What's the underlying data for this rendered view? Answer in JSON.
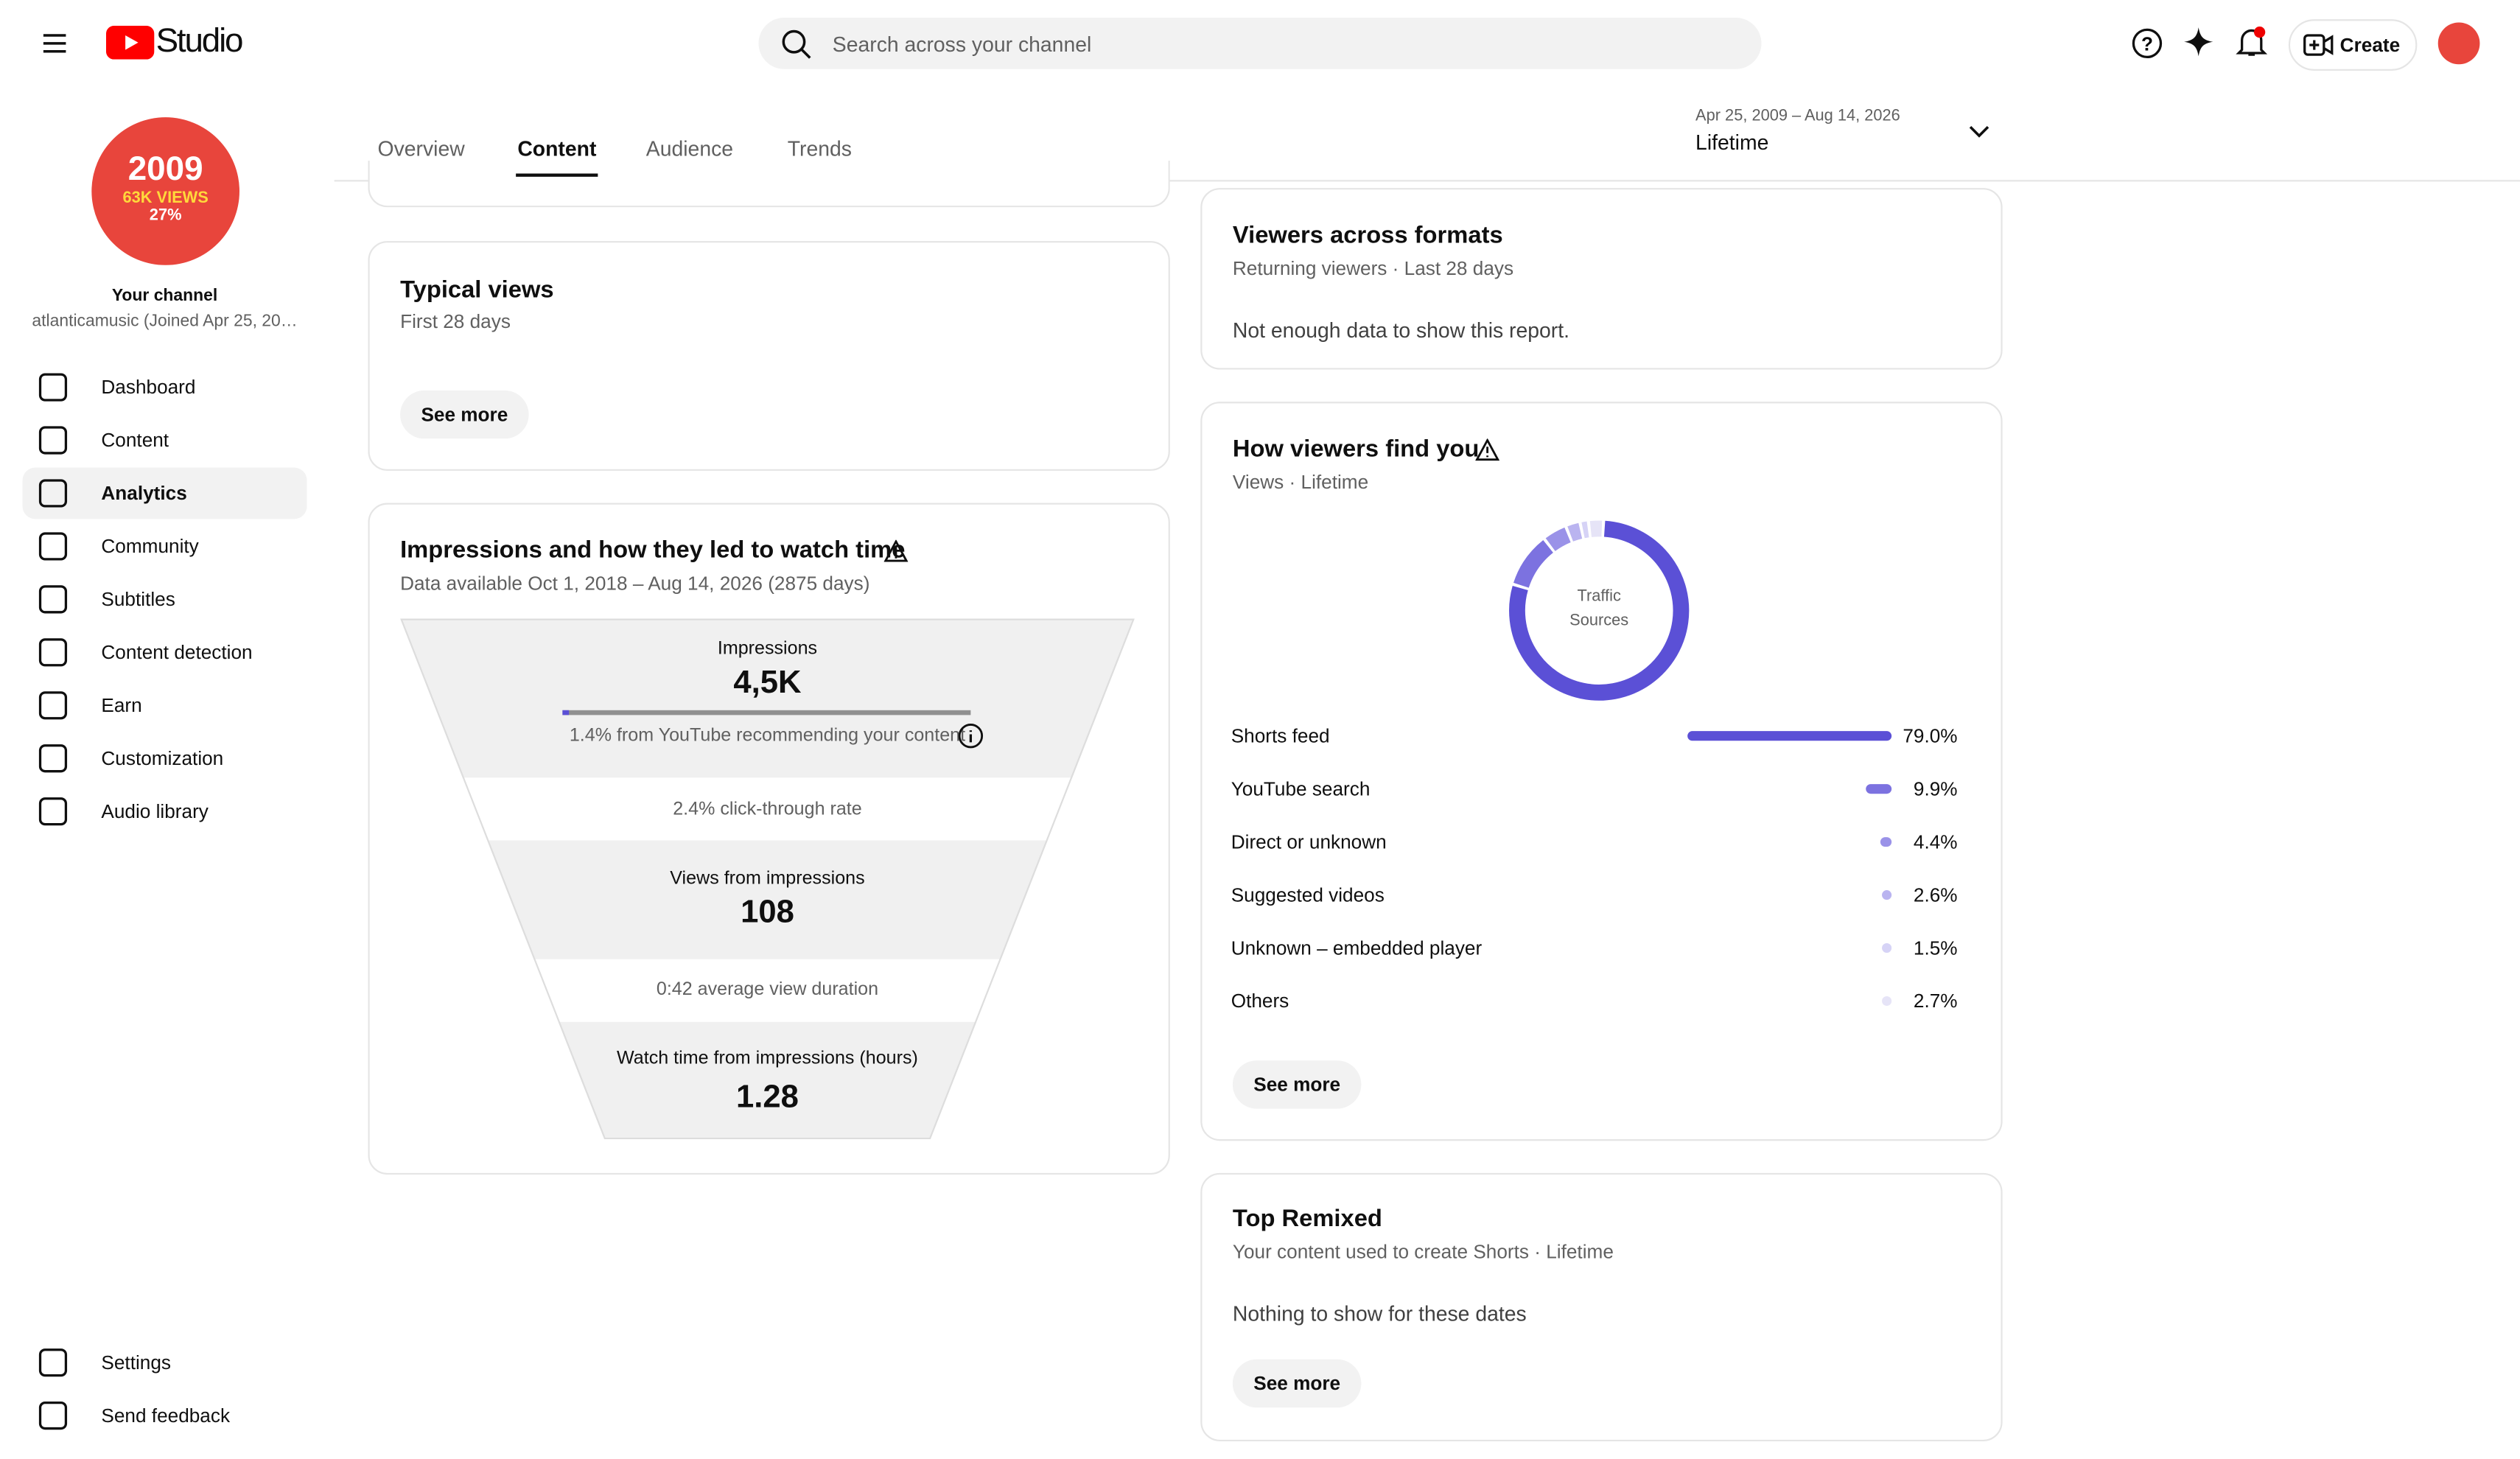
{
  "header": {
    "logo_text": "Studio",
    "search_placeholder": "Search across your channel",
    "create_label": "Create"
  },
  "channel": {
    "badge_year": "2009",
    "badge_views": "63K VIEWS",
    "badge_pct": "27%",
    "label": "Your channel",
    "handle": "atlanticamusic (Joined Apr 25, 20…"
  },
  "nav": [
    "Dashboard",
    "Content",
    "Analytics",
    "Community",
    "Subtitles",
    "Content detection",
    "Earn",
    "Customization",
    "Audio library"
  ],
  "nav_active": 2,
  "nav_bottom": [
    "Settings",
    "Send feedback"
  ],
  "tabs": [
    "Overview",
    "Content",
    "Audience",
    "Trends"
  ],
  "tab_active": 1,
  "date_range": {
    "range": "Apr 25, 2009 – Aug 14, 2026",
    "label": "Lifetime"
  },
  "typical_views": {
    "title": "Typical views",
    "subtitle": "First 28 days",
    "button": "See more"
  },
  "impressions": {
    "title": "Impressions and how they led to watch time",
    "subtitle": "Data available Oct 1, 2018 – Aug 14, 2026 (2875 days)",
    "impressions_label": "Impressions",
    "impressions_value": "4,5K",
    "recommend_note": "1.4% from YouTube recommending your content",
    "ctr": "2.4% click-through rate",
    "views_label": "Views from impressions",
    "views_value": "108",
    "avd": "0:42 average view duration",
    "watch_label": "Watch time from impressions (hours)",
    "watch_value": "1.28"
  },
  "viewers_formats": {
    "title": "Viewers across formats",
    "subtitle": "Returning viewers · Last 28 days",
    "message": "Not enough data to show this report."
  },
  "how_viewers_find_you": {
    "title": "How viewers find you",
    "subtitle": "Views · Lifetime",
    "center_label": "Traffic Sources",
    "categories": [
      "Shorts feed",
      "YouTube search",
      "Direct or unknown",
      "Suggested videos",
      "Unknown – embedded player",
      "Others"
    ],
    "values": [
      79.0,
      9.9,
      4.4,
      2.6,
      1.5,
      2.7
    ],
    "value_labels": [
      "79.0%",
      "9.9%",
      "4.4%",
      "2.6%",
      "1.5%",
      "2.7%"
    ],
    "colors": [
      "#5b50d6",
      "#7c72e0",
      "#9a92e8",
      "#bab4f0",
      "#d6d3f6",
      "#e6e4f7"
    ],
    "button": "See more"
  },
  "top_remixed": {
    "title": "Top Remixed",
    "subtitle": "Your content used to create Shorts · Lifetime",
    "message": "Nothing to show for these dates",
    "button": "See more"
  }
}
